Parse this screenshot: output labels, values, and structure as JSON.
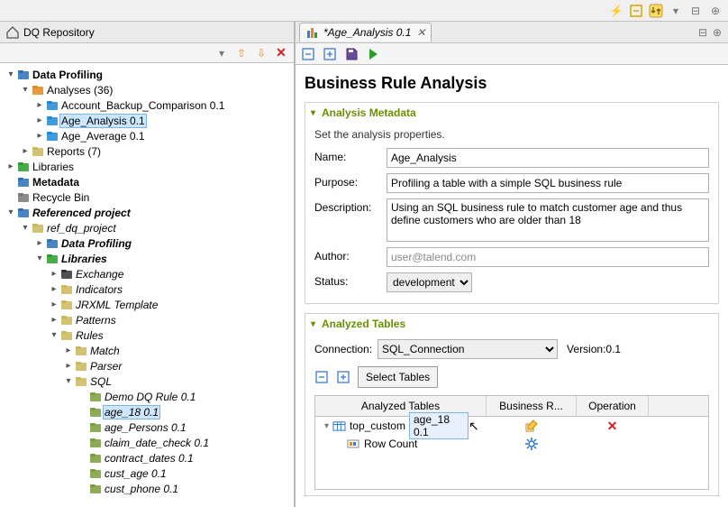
{
  "left_pane_title": "DQ Repository",
  "tree": [
    {
      "depth": 0,
      "twisty": "▾",
      "iconColor": "#2a6fb8",
      "label": "Data Profiling",
      "bold": true
    },
    {
      "depth": 1,
      "twisty": "▾",
      "iconColor": "#e08a1e",
      "label": "Analyses (36)"
    },
    {
      "depth": 2,
      "twisty": "▸",
      "iconColor": "#1e8ad6",
      "label": "Account_Backup_Comparison 0.1"
    },
    {
      "depth": 2,
      "twisty": "▸",
      "iconColor": "#1e8ad6",
      "label": "Age_Analysis 0.1",
      "selected": true
    },
    {
      "depth": 2,
      "twisty": "▸",
      "iconColor": "#1e8ad6",
      "label": "Age_Average 0.1"
    },
    {
      "depth": 1,
      "twisty": "▸",
      "iconColor": "#c9b85a",
      "label": "Reports (7)"
    },
    {
      "depth": 0,
      "twisty": "▸",
      "iconColor": "#2a9c2a",
      "label": "Libraries"
    },
    {
      "depth": 0,
      "twisty": "",
      "iconColor": "#2a6fb8",
      "label": "Metadata",
      "bold": true
    },
    {
      "depth": 0,
      "twisty": "",
      "iconColor": "#777",
      "label": "Recycle Bin"
    },
    {
      "depth": 0,
      "twisty": "▾",
      "iconColor": "#2a6fb8",
      "label": "Referenced project",
      "bold": true,
      "italic": true
    },
    {
      "depth": 1,
      "twisty": "▾",
      "iconColor": "#c9b85a",
      "label": "ref_dq_project",
      "italic": true
    },
    {
      "depth": 2,
      "twisty": "▸",
      "iconColor": "#2a6fb8",
      "label": "Data Profiling",
      "bold": true,
      "italic": true
    },
    {
      "depth": 2,
      "twisty": "▾",
      "iconColor": "#2a9c2a",
      "label": "Libraries",
      "bold": true,
      "italic": true
    },
    {
      "depth": 3,
      "twisty": "▸",
      "iconColor": "#333",
      "label": "Exchange",
      "italic": true
    },
    {
      "depth": 3,
      "twisty": "▸",
      "iconColor": "#c9b85a",
      "label": "Indicators",
      "italic": true
    },
    {
      "depth": 3,
      "twisty": "▸",
      "iconColor": "#c9b85a",
      "label": "JRXML Template",
      "italic": true
    },
    {
      "depth": 3,
      "twisty": "▸",
      "iconColor": "#c9b85a",
      "label": "Patterns",
      "italic": true
    },
    {
      "depth": 3,
      "twisty": "▾",
      "iconColor": "#c9b85a",
      "label": "Rules",
      "italic": true
    },
    {
      "depth": 4,
      "twisty": "▸",
      "iconColor": "#c9b85a",
      "label": "Match",
      "italic": true
    },
    {
      "depth": 4,
      "twisty": "▸",
      "iconColor": "#c9b85a",
      "label": "Parser",
      "italic": true
    },
    {
      "depth": 4,
      "twisty": "▾",
      "iconColor": "#c9b85a",
      "label": "SQL",
      "italic": true
    },
    {
      "depth": 5,
      "twisty": "",
      "iconColor": "#7a9c3a",
      "label": "Demo DQ Rule 0.1",
      "italic": true
    },
    {
      "depth": 5,
      "twisty": "",
      "iconColor": "#7a9c3a",
      "label": "age_18 0.1",
      "italic": true,
      "selected": true
    },
    {
      "depth": 5,
      "twisty": "",
      "iconColor": "#7a9c3a",
      "label": "age_Persons 0.1",
      "italic": true
    },
    {
      "depth": 5,
      "twisty": "",
      "iconColor": "#7a9c3a",
      "label": "claim_date_check 0.1",
      "italic": true
    },
    {
      "depth": 5,
      "twisty": "",
      "iconColor": "#7a9c3a",
      "label": "contract_dates 0.1",
      "italic": true
    },
    {
      "depth": 5,
      "twisty": "",
      "iconColor": "#7a9c3a",
      "label": "cust_age 0.1",
      "italic": true
    },
    {
      "depth": 5,
      "twisty": "",
      "iconColor": "#7a9c3a",
      "label": "cust_phone 0.1",
      "italic": true
    }
  ],
  "tab_title": "*Age_Analysis 0.1",
  "editor_title": "Business Rule Analysis",
  "section_meta_title": "Analysis Metadata",
  "meta_desc": "Set the analysis properties.",
  "meta": {
    "name_k": "Name:",
    "name_v": "Age_Analysis",
    "purpose_k": "Purpose:",
    "purpose_v": "Profiling a table with a simple SQL business rule",
    "description_k": "Description:",
    "description_v": "Using an SQL business rule to match customer age and thus define customers who are older than 18",
    "author_k": "Author:",
    "author_v": "user@talend.com",
    "status_k": "Status:",
    "status_v": "development"
  },
  "section_tables_title": "Analyzed Tables",
  "conn_k": "Connection:",
  "conn_v": "SQL_Connection",
  "version_label": "Version:0.1",
  "select_tables_btn": "Select Tables",
  "grid_head": {
    "c1": "Analyzed Tables",
    "c2": "Business R...",
    "c3": "Operation"
  },
  "grid_rows": {
    "r1_label": "top_custom",
    "r1_drag": "age_18 0.1",
    "r2_label": "Row Count"
  }
}
